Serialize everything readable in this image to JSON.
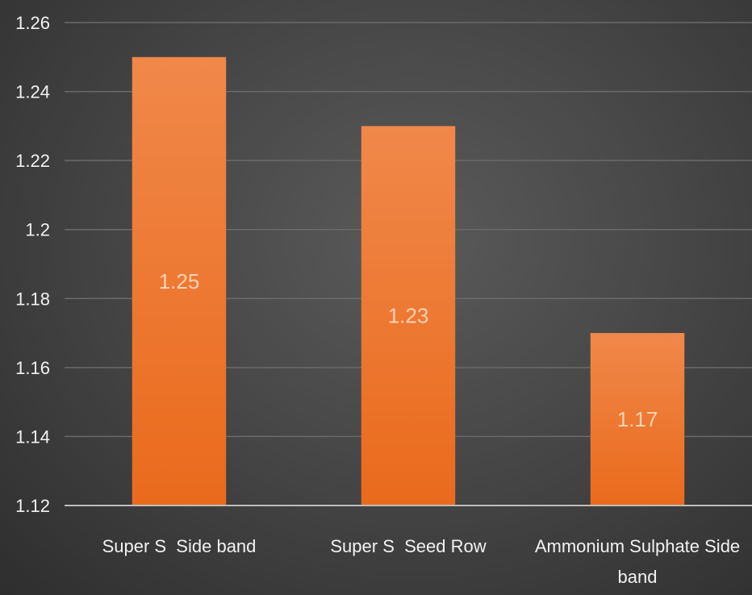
{
  "chart_data": {
    "type": "bar",
    "categories": [
      "Super S  Side band",
      "Super S  Seed Row",
      "Ammonium Sulphate Side band"
    ],
    "values": [
      1.25,
      1.23,
      1.17
    ],
    "data_labels": [
      "1.25",
      "1.23",
      "1.17"
    ],
    "y_ticks": [
      "1.12",
      "1.14",
      "1.16",
      "1.18",
      "1.2",
      "1.22",
      "1.24",
      "1.26"
    ],
    "ylim": [
      1.12,
      1.26
    ],
    "grid": true,
    "legend": "none",
    "colors": {
      "bar_top": "#f0884a",
      "bar_bottom": "#ea6a1c",
      "grid": "#6a6a6a",
      "axis": "#bdbdbd"
    }
  }
}
